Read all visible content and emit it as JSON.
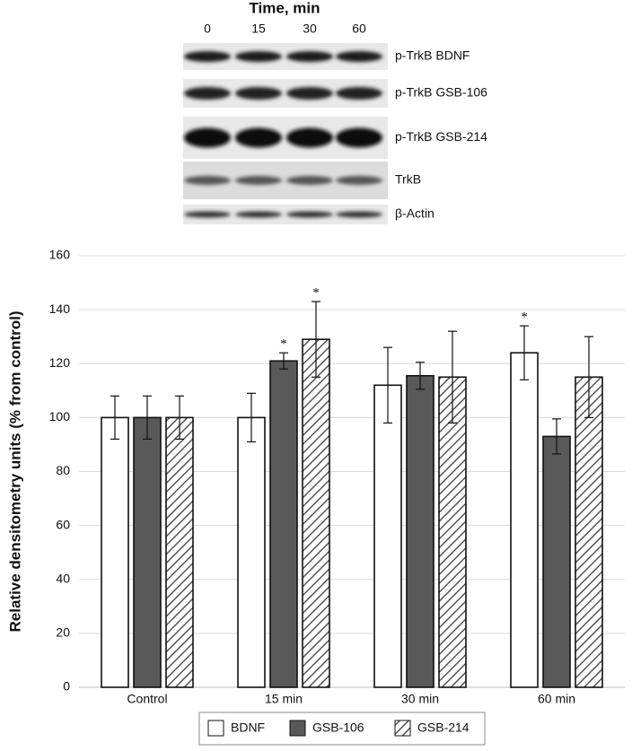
{
  "blot": {
    "title": "Time, min",
    "lanes": [
      "0",
      "15",
      "30",
      "60"
    ],
    "rows": [
      "p-TrkB BDNF",
      "p-TrkB GSB-106",
      "p-TrkB GSB-214",
      "TrkB",
      "β-Actin"
    ]
  },
  "chart_data": {
    "type": "bar",
    "y_label": "Relative densitometry units (% from control)",
    "categories": [
      "Control",
      "15 min",
      "30 min",
      "60 min"
    ],
    "series": [
      {
        "name": "BDNF",
        "color": "#ffffff",
        "values": [
          100,
          100,
          112,
          124
        ],
        "errors": [
          8,
          9,
          14,
          10
        ],
        "markers": [
          null,
          null,
          null,
          "*"
        ]
      },
      {
        "name": "GSB-106",
        "color": "#595959",
        "values": [
          100,
          121,
          115.5,
          93
        ],
        "errors": [
          8,
          3,
          5,
          6.5
        ],
        "markers": [
          null,
          "*",
          null,
          null
        ]
      },
      {
        "name": "GSB-214",
        "color": "#ffffff",
        "pattern": "hatch",
        "values": [
          100,
          129,
          115,
          115
        ],
        "errors": [
          8,
          14,
          17,
          15
        ],
        "markers": [
          null,
          "*",
          null,
          null
        ]
      }
    ],
    "ylim": [
      0,
      160
    ],
    "yticks": [
      0,
      20,
      40,
      60,
      80,
      100,
      120,
      140,
      160
    ],
    "grid": true,
    "legend": "bottom"
  }
}
